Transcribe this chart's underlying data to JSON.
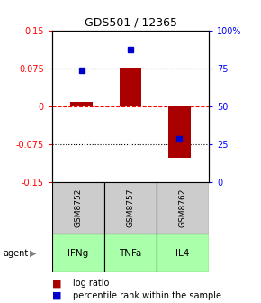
{
  "title": "GDS501 / 12365",
  "samples": [
    "GSM8752",
    "GSM8757",
    "GSM8762"
  ],
  "agents": [
    "IFNg",
    "TNFa",
    "IL4"
  ],
  "log_ratios": [
    0.008,
    0.076,
    -0.102
  ],
  "percentile_ranks": [
    0.735,
    0.875,
    0.285
  ],
  "ylim_left": [
    -0.15,
    0.15
  ],
  "ylim_right": [
    0,
    1.0
  ],
  "yticks_left": [
    -0.15,
    -0.075,
    0,
    0.075,
    0.15
  ],
  "yticks_right": [
    0,
    0.25,
    0.5,
    0.75,
    1.0
  ],
  "ytick_labels_right": [
    "0",
    "25",
    "50",
    "75",
    "100%"
  ],
  "bar_color": "#aa0000",
  "dot_color": "#0000cc",
  "sample_bg": "#cccccc",
  "agent_bg": "#aaffaa",
  "legend_log_ratio": "log ratio",
  "legend_percentile": "percentile rank within the sample"
}
